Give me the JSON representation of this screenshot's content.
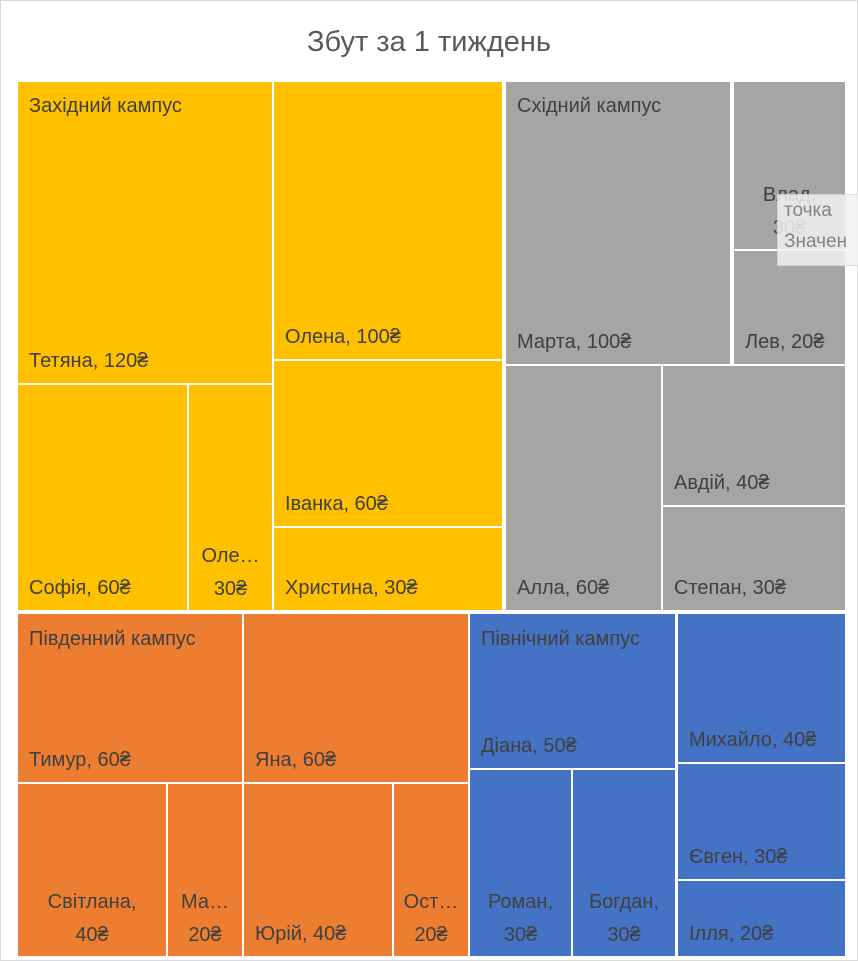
{
  "chart_data": {
    "type": "treemap",
    "title": "Збут за 1 тиждень",
    "currency": "₴",
    "groups": [
      {
        "name": "Західний кампус",
        "color": "#ffc000",
        "items": [
          {
            "name": "Тетяна",
            "value": 120,
            "label": "Тетяна,  120₴"
          },
          {
            "name": "Олена",
            "value": 100,
            "label": "Олена,  100₴"
          },
          {
            "name": "Іванка",
            "value": 60,
            "label": "Іванка,  60₴"
          },
          {
            "name": "Софія",
            "value": 60,
            "label": "Софія,  60₴"
          },
          {
            "name": "Олеся",
            "value": 30,
            "label": [
              "Оле…",
              "30₴"
            ]
          },
          {
            "name": "Христина",
            "value": 30,
            "label": "Христина,  30₴"
          }
        ]
      },
      {
        "name": "Східний кампус",
        "color": "#a5a5a5",
        "items": [
          {
            "name": "Марта",
            "value": 100,
            "label": "Марта,  100₴"
          },
          {
            "name": "Влад",
            "value": 30,
            "label": [
              "Влад,",
              "30₴"
            ]
          },
          {
            "name": "Лев",
            "value": 20,
            "label": "Лев,  20₴"
          },
          {
            "name": "Алла",
            "value": 60,
            "label": "Алла,  60₴"
          },
          {
            "name": "Авдій",
            "value": 40,
            "label": "Авдій,  40₴"
          },
          {
            "name": "Степан",
            "value": 30,
            "label": "Степан,  30₴"
          }
        ]
      },
      {
        "name": "Південний кампус",
        "color": "#ed7d31",
        "items": [
          {
            "name": "Тимур",
            "value": 60,
            "label": "Тимур,  60₴"
          },
          {
            "name": "Яна",
            "value": 60,
            "label": "Яна,  60₴"
          },
          {
            "name": "Світлана",
            "value": 40,
            "label": [
              "Світлана,",
              "40₴"
            ]
          },
          {
            "name": "Марія",
            "value": 20,
            "label": [
              "Ма…",
              "20₴"
            ]
          },
          {
            "name": "Юрій",
            "value": 40,
            "label": "Юрій,  40₴"
          },
          {
            "name": "Остап",
            "value": 20,
            "label": [
              "Ост…",
              "20₴"
            ]
          }
        ]
      },
      {
        "name": "Північний кампус",
        "color": "#4472c4",
        "items": [
          {
            "name": "Діана",
            "value": 50,
            "label": "Діана,  50₴"
          },
          {
            "name": "Михайло",
            "value": 40,
            "label": "Михайло,  40₴"
          },
          {
            "name": "Роман",
            "value": 30,
            "label": [
              "Роман,",
              "30₴"
            ]
          },
          {
            "name": "Богдан",
            "value": 30,
            "label": [
              "Богдан,",
              "30₴"
            ]
          },
          {
            "name": "Євген",
            "value": 30,
            "label": "Євген,  30₴"
          },
          {
            "name": "Ілля",
            "value": 20,
            "label": "Ілля,  20₴"
          }
        ]
      }
    ]
  },
  "tooltip": {
    "line1": "точка",
    "line2": "Значен"
  }
}
